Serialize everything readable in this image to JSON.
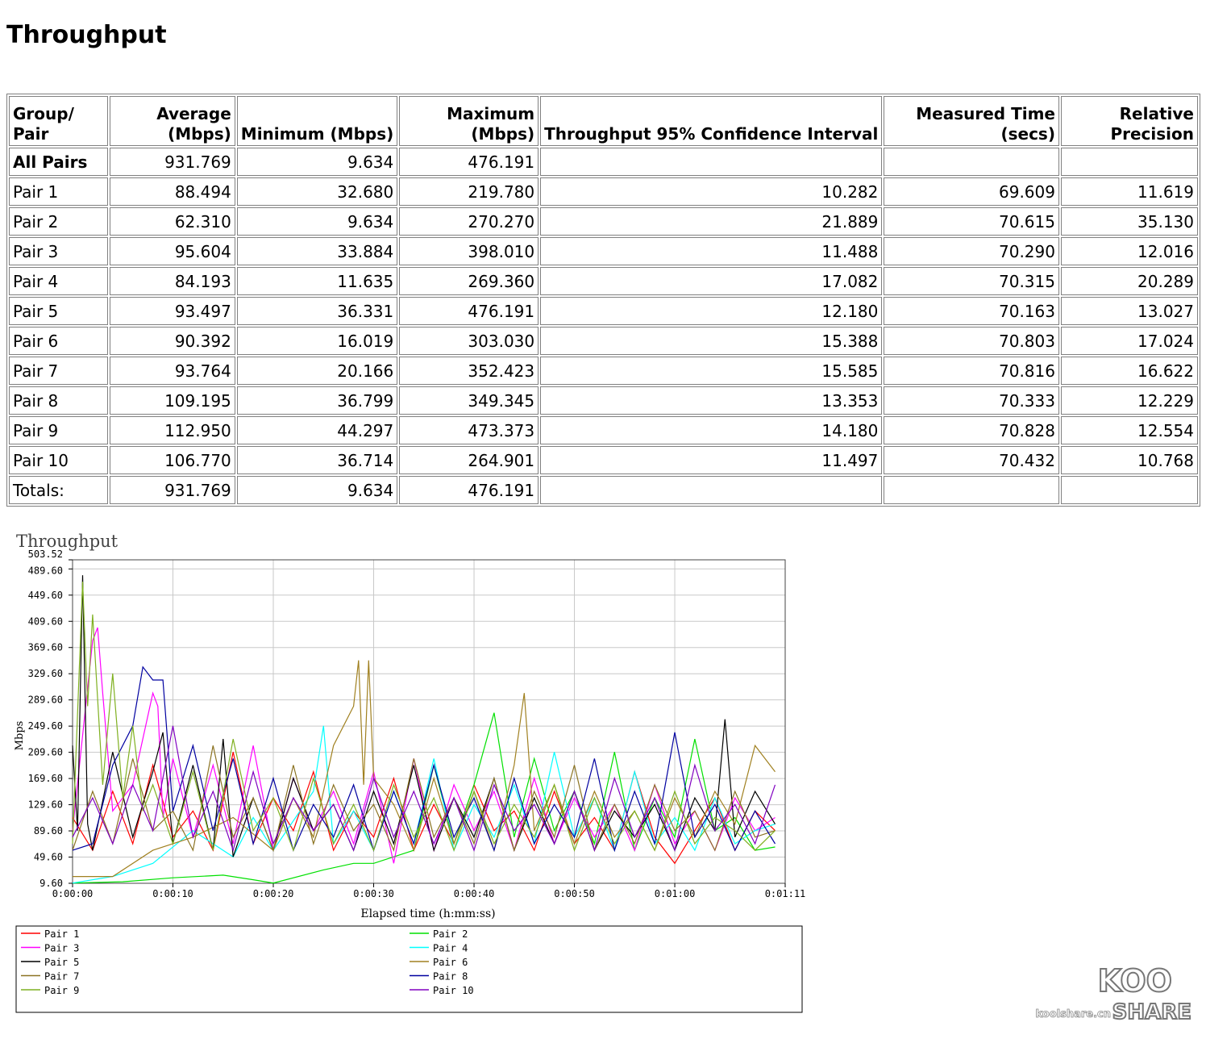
{
  "page": {
    "title": "Throughput"
  },
  "table": {
    "headers": [
      "Group/\nPair",
      "Average\n(Mbps)",
      "Minimum (Mbps)",
      "Maximum\n(Mbps)",
      "Throughput 95% Confidence Interval",
      "Measured Time\n(secs)",
      "Relative\nPrecision"
    ],
    "rows": [
      [
        "All Pairs",
        "931.769",
        "9.634",
        "476.191",
        "",
        "",
        ""
      ],
      [
        "Pair 1",
        "88.494",
        "32.680",
        "219.780",
        "10.282",
        "69.609",
        "11.619"
      ],
      [
        "Pair 2",
        "62.310",
        "9.634",
        "270.270",
        "21.889",
        "70.615",
        "35.130"
      ],
      [
        "Pair 3",
        "95.604",
        "33.884",
        "398.010",
        "11.488",
        "70.290",
        "12.016"
      ],
      [
        "Pair 4",
        "84.193",
        "11.635",
        "269.360",
        "17.082",
        "70.315",
        "20.289"
      ],
      [
        "Pair 5",
        "93.497",
        "36.331",
        "476.191",
        "12.180",
        "70.163",
        "13.027"
      ],
      [
        "Pair 6",
        "90.392",
        "16.019",
        "303.030",
        "15.388",
        "70.803",
        "17.024"
      ],
      [
        "Pair 7",
        "93.764",
        "20.166",
        "352.423",
        "15.585",
        "70.816",
        "16.622"
      ],
      [
        "Pair 8",
        "109.195",
        "36.799",
        "349.345",
        "13.353",
        "70.333",
        "12.229"
      ],
      [
        "Pair 9",
        "112.950",
        "44.297",
        "473.373",
        "14.180",
        "70.828",
        "12.554"
      ],
      [
        "Pair 10",
        "106.770",
        "36.714",
        "264.901",
        "11.497",
        "70.432",
        "10.768"
      ],
      [
        "Totals:",
        "931.769",
        "9.634",
        "476.191",
        "",
        "",
        ""
      ]
    ]
  },
  "chart_data": {
    "type": "line",
    "title": "Throughput",
    "xlabel": "Elapsed time (h:mm:ss)",
    "ylabel": "Mbps",
    "xlim": [
      0,
      71
    ],
    "ylim": [
      9.6,
      503.52
    ],
    "y_ticks": [
      "9.60",
      "49.60",
      "89.60",
      "129.60",
      "169.60",
      "209.60",
      "249.60",
      "289.60",
      "329.60",
      "369.60",
      "409.60",
      "449.60",
      "489.60",
      "503.52"
    ],
    "y_tick_values": [
      9.6,
      49.6,
      89.6,
      129.6,
      169.6,
      209.6,
      249.6,
      289.6,
      329.6,
      369.6,
      409.6,
      449.6,
      489.6,
      503.52
    ],
    "x_ticks": [
      "0:00:00",
      "0:00:10",
      "0:00:20",
      "0:00:30",
      "0:00:40",
      "0:00:50",
      "0:01:00",
      "0:01:11"
    ],
    "x_tick_values": [
      0,
      10,
      20,
      30,
      40,
      50,
      60,
      71
    ],
    "grid": true,
    "legend_position": "bottom",
    "series": [
      {
        "name": "Pair 1",
        "color": "#ff0000",
        "x": [
          0,
          2,
          4,
          6,
          8,
          10,
          12,
          14,
          16,
          18,
          20,
          22,
          24,
          26,
          28,
          30,
          32,
          34,
          36,
          38,
          40,
          42,
          44,
          46,
          48,
          50,
          52,
          54,
          56,
          58,
          60,
          62,
          64,
          66,
          68,
          70
        ],
        "values": [
          110,
          60,
          150,
          70,
          190,
          80,
          120,
          60,
          210,
          70,
          140,
          90,
          180,
          60,
          120,
          80,
          170,
          60,
          130,
          70,
          160,
          90,
          120,
          60,
          150,
          70,
          110,
          60,
          180,
          80,
          40,
          90,
          140,
          60,
          120,
          90
        ]
      },
      {
        "name": "Pair 2",
        "color": "#00e000",
        "x": [
          0,
          5,
          10,
          15,
          18,
          20,
          25,
          28,
          30,
          34,
          36,
          38,
          40,
          42,
          44,
          46,
          48,
          50,
          52,
          54,
          56,
          58,
          60,
          62,
          64,
          66,
          68,
          70
        ],
        "values": [
          10,
          12,
          18,
          22,
          15,
          10,
          30,
          40,
          40,
          60,
          190,
          70,
          160,
          270,
          80,
          200,
          90,
          150,
          70,
          210,
          60,
          140,
          80,
          230,
          90,
          110,
          60,
          65
        ]
      },
      {
        "name": "Pair 3",
        "color": "#ff00ff",
        "x": [
          0,
          2,
          2.5,
          3,
          4,
          6,
          8,
          8.5,
          9,
          10,
          12,
          14,
          16,
          18,
          20,
          22,
          24,
          26,
          28,
          30,
          32,
          34,
          36,
          38,
          40,
          42,
          44,
          46,
          48,
          50,
          52,
          54,
          56,
          58,
          60,
          62,
          64,
          66,
          68,
          70
        ],
        "values": [
          90,
          380,
          400,
          300,
          120,
          160,
          300,
          280,
          110,
          200,
          80,
          190,
          70,
          220,
          60,
          170,
          90,
          150,
          70,
          180,
          40,
          200,
          60,
          160,
          90,
          150,
          60,
          170,
          70,
          140,
          80,
          130,
          60,
          160,
          70,
          120,
          60,
          140,
          90,
          110
        ]
      },
      {
        "name": "Pair 4",
        "color": "#00ffff",
        "x": [
          0,
          4,
          8,
          12,
          16,
          18,
          20,
          24,
          25,
          26,
          28,
          30,
          32,
          34,
          36,
          38,
          40,
          42,
          44,
          46,
          48,
          50,
          52,
          54,
          56,
          58,
          60,
          62,
          64,
          66,
          68,
          70
        ],
        "values": [
          10,
          20,
          40,
          90,
          50,
          110,
          60,
          150,
          250,
          70,
          120,
          60,
          150,
          70,
          200,
          60,
          130,
          80,
          160,
          70,
          210,
          80,
          140,
          60,
          180,
          70,
          110,
          60,
          140,
          70,
          90,
          100
        ]
      },
      {
        "name": "Pair 5",
        "color": "#000000",
        "x": [
          0,
          0.5,
          1,
          1.5,
          2,
          4,
          6,
          8,
          9,
          10,
          12,
          14,
          15,
          16,
          18,
          20,
          22,
          24,
          26,
          28,
          30,
          32,
          34,
          36,
          38,
          40,
          42,
          44,
          46,
          48,
          50,
          52,
          54,
          56,
          58,
          60,
          62,
          64,
          65,
          66,
          68,
          70
        ],
        "values": [
          220,
          90,
          480,
          100,
          60,
          210,
          80,
          180,
          240,
          70,
          190,
          60,
          230,
          50,
          140,
          60,
          170,
          90,
          130,
          60,
          150,
          70,
          190,
          60,
          140,
          80,
          170,
          60,
          140,
          70,
          150,
          60,
          120,
          80,
          130,
          60,
          140,
          90,
          260,
          80,
          150,
          100
        ]
      },
      {
        "name": "Pair 6",
        "color": "#a08020",
        "x": [
          0,
          4,
          8,
          12,
          16,
          20,
          22,
          24,
          26,
          28,
          28.5,
          29,
          29.5,
          30,
          32,
          34,
          36,
          38,
          40,
          42,
          44,
          45,
          46,
          48,
          50,
          52,
          54,
          56,
          58,
          60,
          62,
          64,
          66,
          68,
          70
        ],
        "values": [
          20,
          20,
          60,
          80,
          110,
          60,
          140,
          80,
          220,
          280,
          350,
          160,
          350,
          170,
          130,
          60,
          170,
          70,
          150,
          60,
          190,
          300,
          90,
          160,
          70,
          150,
          80,
          120,
          60,
          140,
          80,
          150,
          100,
          220,
          180
        ]
      },
      {
        "name": "Pair 7",
        "color": "#8b7322",
        "x": [
          0,
          2,
          4,
          6,
          8,
          10,
          12,
          14,
          16,
          18,
          20,
          22,
          24,
          26,
          28,
          30,
          32,
          34,
          36,
          38,
          40,
          42,
          44,
          46,
          48,
          50,
          52,
          54,
          56,
          58,
          60,
          62,
          64,
          66,
          68,
          70
        ],
        "values": [
          60,
          150,
          70,
          200,
          90,
          120,
          60,
          220,
          80,
          140,
          60,
          190,
          70,
          160,
          90,
          130,
          60,
          200,
          80,
          140,
          70,
          170,
          60,
          150,
          80,
          190,
          60,
          130,
          70,
          160,
          90,
          120,
          60,
          150,
          80,
          90
        ]
      },
      {
        "name": "Pair 8",
        "color": "#0000a0",
        "x": [
          0,
          2,
          4,
          6,
          7,
          8,
          9,
          10,
          12,
          14,
          16,
          18,
          20,
          22,
          24,
          26,
          28,
          30,
          32,
          34,
          36,
          38,
          40,
          42,
          44,
          46,
          48,
          50,
          52,
          54,
          56,
          58,
          60,
          62,
          64,
          66,
          68,
          70
        ],
        "values": [
          60,
          70,
          190,
          250,
          340,
          320,
          320,
          120,
          220,
          90,
          200,
          70,
          170,
          60,
          130,
          80,
          160,
          60,
          150,
          70,
          190,
          80,
          140,
          60,
          170,
          70,
          130,
          80,
          200,
          60,
          150,
          70,
          240,
          80,
          130,
          60,
          120,
          70
        ]
      },
      {
        "name": "Pair 9",
        "color": "#7fb020",
        "x": [
          0,
          1,
          1.5,
          2,
          3,
          4,
          5,
          6,
          7,
          8,
          10,
          12,
          14,
          16,
          18,
          20,
          22,
          24,
          26,
          28,
          30,
          32,
          34,
          36,
          38,
          40,
          42,
          44,
          46,
          48,
          50,
          52,
          54,
          56,
          58,
          60,
          62,
          64,
          66,
          68,
          70
        ],
        "values": [
          70,
          470,
          280,
          420,
          160,
          330,
          140,
          250,
          120,
          160,
          70,
          180,
          60,
          230,
          90,
          140,
          60,
          170,
          70,
          130,
          60,
          160,
          80,
          140,
          60,
          150,
          70,
          130,
          80,
          160,
          60,
          140,
          70,
          120,
          60,
          150,
          70,
          110,
          90,
          60,
          90
        ]
      },
      {
        "name": "Pair 10",
        "color": "#8000c0",
        "x": [
          0,
          2,
          4,
          6,
          8,
          10,
          12,
          14,
          16,
          18,
          20,
          22,
          24,
          26,
          28,
          30,
          32,
          34,
          36,
          38,
          40,
          42,
          44,
          46,
          48,
          50,
          52,
          54,
          56,
          58,
          60,
          62,
          64,
          66,
          68,
          70
        ],
        "values": [
          80,
          140,
          70,
          160,
          90,
          250,
          80,
          150,
          60,
          180,
          70,
          140,
          90,
          130,
          60,
          170,
          80,
          150,
          70,
          140,
          60,
          160,
          90,
          130,
          70,
          150,
          60,
          170,
          80,
          140,
          60,
          190,
          90,
          130,
          70,
          160
        ]
      }
    ]
  },
  "watermark": {
    "brand_top": "KOO",
    "brand_bottom": "SHARE",
    "url": "koolshare.cn"
  }
}
